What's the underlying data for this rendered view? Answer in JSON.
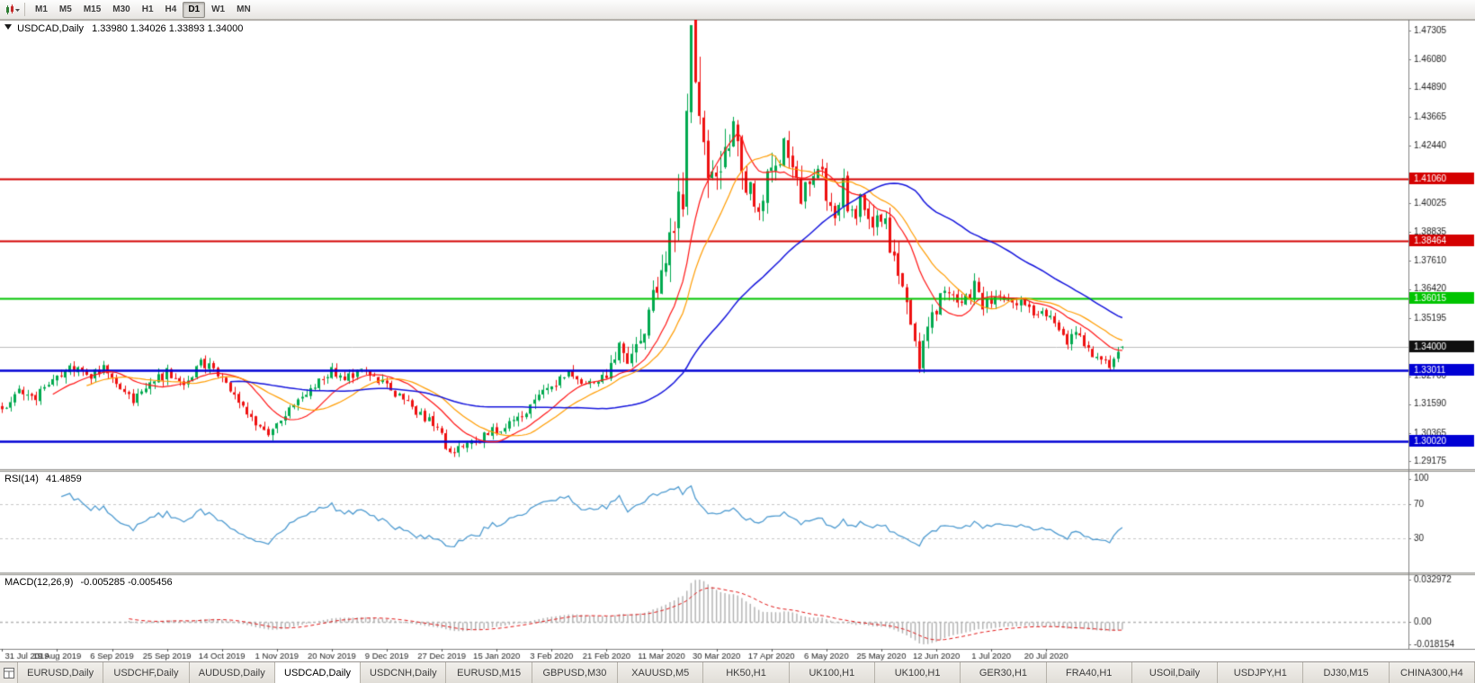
{
  "toolbar": {
    "timeframes": [
      "M1",
      "M5",
      "M15",
      "M30",
      "H1",
      "H4",
      "D1",
      "W1",
      "MN"
    ],
    "active_timeframe": "D1"
  },
  "chart": {
    "title_symbol": "USDCAD,Daily",
    "ohlc": "1.33980 1.34026 1.33893 1.34000"
  },
  "icons": {
    "toolbar_left": "candlestick-chart-icon",
    "title_marker": "triangle-down-icon",
    "tabbar_left": "chart-windows-icon"
  },
  "chart_data": {
    "type": "candlestick",
    "symbol": "USDCAD",
    "timeframe": "Daily",
    "ohlc": {
      "open": "1.33980",
      "high": "1.34026",
      "low": "1.33893",
      "close": "1.34000"
    },
    "up_color": "#00a94f",
    "down_color": "#ee1111",
    "y_axis_ticks": [
      "1.47305",
      "1.46080",
      "1.44890",
      "1.43665",
      "1.42440",
      "1.40025",
      "1.38835",
      "1.37610",
      "1.36420",
      "1.35195",
      "1.32760",
      "1.31590",
      "1.30365",
      "1.29175"
    ],
    "price_lines": [
      {
        "price": 1.4106,
        "label": "1.41060",
        "color": "#d40000",
        "width": 2
      },
      {
        "price": 1.38464,
        "label": "1.38464",
        "color": "#d40000",
        "width": 2
      },
      {
        "price": 1.36015,
        "label": "1.36015",
        "color": "#00c400",
        "width": 2
      },
      {
        "price": 1.33011,
        "label": "1.33011",
        "color": "#0000d4",
        "width": 2.5
      },
      {
        "price": 1.3002,
        "label": "1.30020",
        "color": "#0000d4",
        "width": 2.5
      }
    ],
    "current_price": {
      "price": 1.34,
      "label": "1.34000",
      "color": "#101010"
    },
    "x_labels": [
      "31 Jul 2019",
      "19 Aug 2019",
      "6 Sep 2019",
      "25 Sep 2019",
      "14 Oct 2019",
      "1 Nov 2019",
      "20 Nov 2019",
      "9 Dec 2019",
      "27 Dec 2019",
      "15 Jan 2020",
      "3 Feb 2020",
      "21 Feb 2020",
      "11 Mar 2020",
      "30 Mar 2020",
      "17 Apr 2020",
      "6 May 2020",
      "25 May 2020",
      "12 Jun 2020",
      "1 Jul 2020",
      "20 Jul 2020"
    ],
    "candles_per_label": 13,
    "num_candles": 266,
    "candle_width": 4.7,
    "price_waypoints": [
      [
        0,
        1.315
      ],
      [
        4,
        1.3205
      ],
      [
        8,
        1.3185
      ],
      [
        13,
        1.3265
      ],
      [
        17,
        1.332
      ],
      [
        20,
        1.327
      ],
      [
        24,
        1.33
      ],
      [
        28,
        1.321
      ],
      [
        31,
        1.3175
      ],
      [
        35,
        1.3245
      ],
      [
        39,
        1.329
      ],
      [
        43,
        1.3255
      ],
      [
        47,
        1.333
      ],
      [
        50,
        1.331
      ],
      [
        53,
        1.3235
      ],
      [
        57,
        1.315
      ],
      [
        60,
        1.308
      ],
      [
        63,
        1.3045
      ],
      [
        66,
        1.3095
      ],
      [
        70,
        1.317
      ],
      [
        74,
        1.324
      ],
      [
        78,
        1.33
      ],
      [
        81,
        1.327
      ],
      [
        85,
        1.3305
      ],
      [
        88,
        1.328
      ],
      [
        91,
        1.324
      ],
      [
        95,
        1.317
      ],
      [
        99,
        1.311
      ],
      [
        103,
        1.306
      ],
      [
        106,
        1.2955
      ],
      [
        109,
        1.2985
      ],
      [
        113,
        1.301
      ],
      [
        117,
        1.3055
      ],
      [
        121,
        1.309
      ],
      [
        125,
        1.314
      ],
      [
        128,
        1.3205
      ],
      [
        131,
        1.3255
      ],
      [
        134,
        1.329
      ],
      [
        137,
        1.324
      ],
      [
        140,
        1.327
      ],
      [
        143,
        1.328
      ],
      [
        146,
        1.339
      ],
      [
        148,
        1.3335
      ],
      [
        151,
        1.342
      ],
      [
        154,
        1.358
      ],
      [
        156,
        1.372
      ],
      [
        158,
        1.387
      ],
      [
        160,
        1.399
      ],
      [
        161,
        1.408
      ],
      [
        162,
        1.444
      ],
      [
        163,
        1.465
      ],
      [
        164,
        1.442
      ],
      [
        165,
        1.448
      ],
      [
        166,
        1.43
      ],
      [
        167,
        1.418
      ],
      [
        168,
        1.407
      ],
      [
        169,
        1.409
      ],
      [
        171,
        1.418
      ],
      [
        173,
        1.428
      ],
      [
        175,
        1.416
      ],
      [
        177,
        1.406
      ],
      [
        179,
        1.3985
      ],
      [
        181,
        1.408
      ],
      [
        183,
        1.417
      ],
      [
        185,
        1.423
      ],
      [
        187,
        1.412
      ],
      [
        189,
        1.4025
      ],
      [
        191,
        1.412
      ],
      [
        193,
        1.418
      ],
      [
        195,
        1.406
      ],
      [
        197,
        1.3985
      ],
      [
        199,
        1.4075
      ],
      [
        201,
        1.3955
      ],
      [
        203,
        1.401
      ],
      [
        205,
        1.3975
      ],
      [
        207,
        1.3915
      ],
      [
        208,
        1.395
      ],
      [
        211,
        1.379
      ],
      [
        213,
        1.363
      ],
      [
        215,
        1.348
      ],
      [
        217,
        1.3345
      ],
      [
        219,
        1.347
      ],
      [
        221,
        1.356
      ],
      [
        223,
        1.363
      ],
      [
        226,
        1.356
      ],
      [
        228,
        1.3605
      ],
      [
        230,
        1.365
      ],
      [
        232,
        1.3585
      ],
      [
        234,
        1.357
      ],
      [
        236,
        1.3615
      ],
      [
        238,
        1.36
      ],
      [
        240,
        1.356
      ],
      [
        242,
        1.359
      ],
      [
        244,
        1.355
      ],
      [
        246,
        1.353
      ],
      [
        248,
        1.3555
      ],
      [
        250,
        1.348
      ],
      [
        252,
        1.3425
      ],
      [
        254,
        1.345
      ],
      [
        256,
        1.34
      ],
      [
        258,
        1.3365
      ],
      [
        260,
        1.3345
      ],
      [
        262,
        1.333
      ],
      [
        264,
        1.339
      ],
      [
        265,
        1.34
      ]
    ],
    "volatility_waypoints": [
      [
        0,
        0.0052
      ],
      [
        100,
        0.0046
      ],
      [
        140,
        0.0052
      ],
      [
        150,
        0.009
      ],
      [
        158,
        0.017
      ],
      [
        163,
        0.027
      ],
      [
        168,
        0.021
      ],
      [
        175,
        0.0155
      ],
      [
        185,
        0.0125
      ],
      [
        200,
        0.0105
      ],
      [
        212,
        0.0115
      ],
      [
        222,
        0.0085
      ],
      [
        235,
        0.0065
      ],
      [
        250,
        0.0055
      ],
      [
        265,
        0.0048
      ]
    ],
    "moving_averages": [
      {
        "period": 13,
        "color": "#ff1414",
        "width": 1.2
      },
      {
        "period": 21,
        "color": "#ff9c00",
        "width": 1.2
      },
      {
        "period": 55,
        "color": "#1414dc",
        "width": 1.5
      }
    ],
    "indicators": {
      "rsi": {
        "label": "RSI(14)",
        "value": "41.4859",
        "period": 14,
        "levels": [
          100,
          70,
          30
        ],
        "line_color": "#4f9bd0"
      },
      "macd": {
        "label": "MACD(12,26,9)",
        "values": "-0.005285 -0.005456",
        "fast": 12,
        "slow": 26,
        "signal_period": 9,
        "axis_labels": [
          "0.032972",
          "0.00",
          "-0.018154"
        ],
        "histogram_color": "#b0b0b0",
        "signal_color": "#e01414"
      }
    }
  },
  "tabs": {
    "active": "USDCAD,Daily",
    "items": [
      {
        "label": "EURUSD,Daily"
      },
      {
        "label": "USDCHF,Daily"
      },
      {
        "label": "AUDUSD,Daily"
      },
      {
        "label": "USDCAD,Daily"
      },
      {
        "label": "USDCNH,Daily"
      },
      {
        "label": "EURUSD,M15"
      },
      {
        "label": "GBPUSD,M30"
      },
      {
        "label": "XAUUSD,M5"
      },
      {
        "label": "HK50,H1"
      },
      {
        "label": "UK100,H1"
      },
      {
        "label": "UK100,H1"
      },
      {
        "label": "GER30,H1"
      },
      {
        "label": "FRA40,H1"
      },
      {
        "label": "USOil,Daily"
      },
      {
        "label": "USDJPY,H1"
      },
      {
        "label": "DJ30,M15"
      },
      {
        "label": "CHINA300,H4"
      }
    ]
  }
}
